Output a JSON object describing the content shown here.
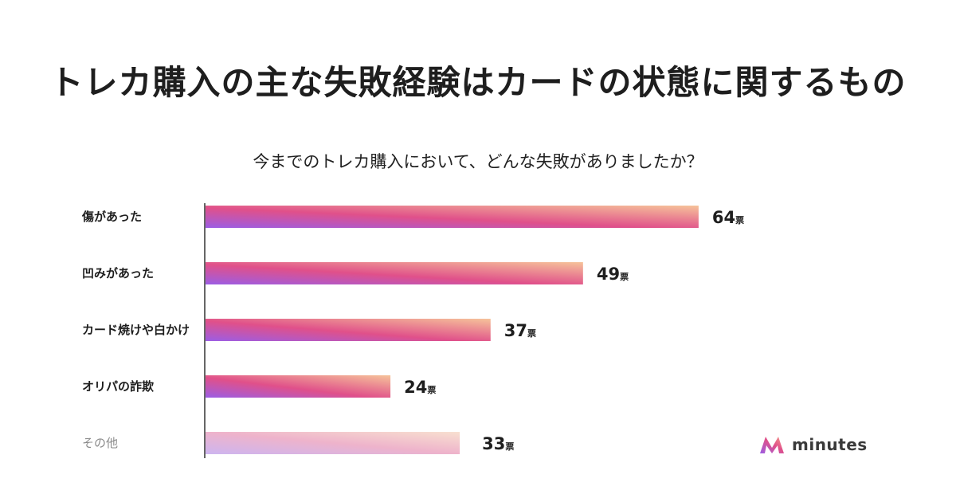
{
  "title": "トレカ購入の主な失敗経験はカードの状態に関するもの",
  "subtitle": "今までのトレカ購入において、どんな失敗がありましたか？",
  "logo": {
    "text": "minutes",
    "icon": "minutes-logo-icon"
  },
  "colors": {
    "bar_start": "#9b5de5",
    "bar_mid": "#e0508a",
    "bar_end": "#f6c39a",
    "axis": "#666666"
  },
  "chart_data": {
    "type": "bar",
    "orientation": "horizontal",
    "categories": [
      "傷があった",
      "凹みがあった",
      "カード焼けや白かけ",
      "オリパの詐欺",
      "その他"
    ],
    "values": [
      64,
      49,
      37,
      24,
      33
    ],
    "unit": "票",
    "title": "今までのトレカ購入において、どんな失敗がありましたか？",
    "muted_categories": [
      "その他"
    ],
    "grid": false,
    "legend": "none"
  }
}
